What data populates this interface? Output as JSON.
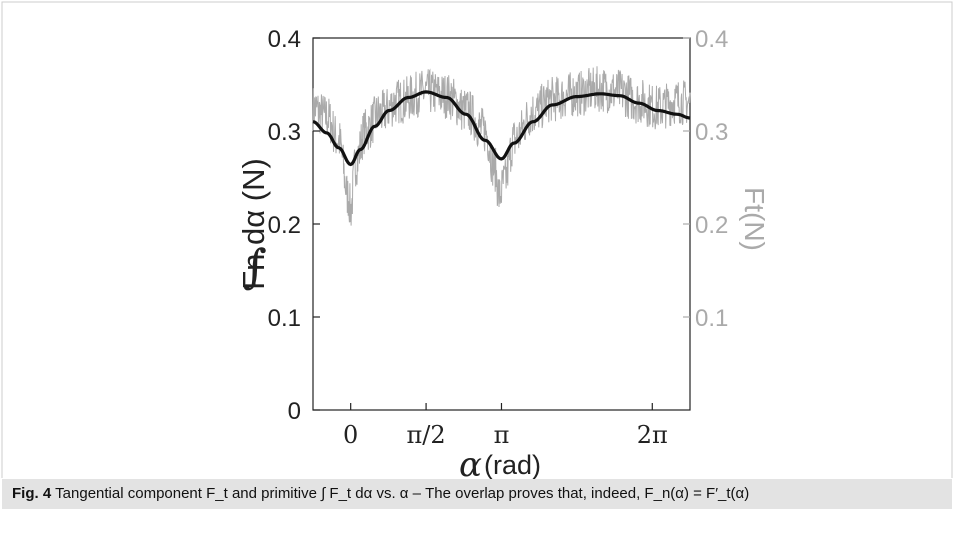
{
  "chart_data": {
    "type": "line",
    "x_axis": {
      "label_symbol": "α",
      "label_unit": "(rad)",
      "range": [
        -0.785,
        7.069
      ],
      "ticks": [
        {
          "value": 0,
          "label": "0"
        },
        {
          "value": 1.5708,
          "label": "π/2"
        },
        {
          "value": 3.1416,
          "label": "π"
        },
        {
          "value": 6.2832,
          "label": "2π"
        }
      ]
    },
    "y_axis_left": {
      "label_prefix": "∫",
      "label_main": "Fn dα (N)",
      "range": [
        0,
        0.4
      ],
      "ticks": [
        {
          "value": 0,
          "label": "0"
        },
        {
          "value": 0.1,
          "label": "0.1"
        },
        {
          "value": 0.2,
          "label": "0.2"
        },
        {
          "value": 0.3,
          "label": "0.3"
        },
        {
          "value": 0.4,
          "label": "0.4"
        }
      ]
    },
    "y_axis_right": {
      "label": "Ft(N)",
      "color": "#aaaaaa",
      "range": [
        0,
        0.4
      ],
      "ticks": [
        {
          "value": 0.1,
          "label": "0.1"
        },
        {
          "value": 0.2,
          "label": "0.2"
        },
        {
          "value": 0.3,
          "label": "0.3"
        },
        {
          "value": 0.4,
          "label": "0.4"
        }
      ]
    },
    "series": [
      {
        "color": "#111111",
        "x": [
          -0.785,
          -0.5,
          -0.25,
          0,
          0.2,
          0.5,
          0.8,
          1.2,
          1.57,
          2.0,
          2.4,
          2.8,
          3.14,
          3.4,
          3.8,
          4.2,
          4.71,
          5.2,
          5.6,
          6.0,
          6.4,
          6.8,
          7.069
        ],
        "y": [
          0.31,
          0.298,
          0.282,
          0.264,
          0.28,
          0.305,
          0.322,
          0.336,
          0.342,
          0.336,
          0.318,
          0.29,
          0.27,
          0.287,
          0.31,
          0.328,
          0.337,
          0.34,
          0.338,
          0.33,
          0.322,
          0.318,
          0.314
        ]
      },
      {
        "color": "#aaaaaa",
        "x": [
          -0.785,
          -0.5,
          -0.25,
          -0.05,
          0.0,
          0.1,
          0.3,
          0.6,
          1.0,
          1.57,
          2.0,
          2.4,
          2.8,
          3.0,
          3.1,
          3.2,
          3.4,
          3.8,
          4.2,
          4.71,
          5.2,
          5.6,
          6.0,
          6.4,
          6.8,
          7.069
        ],
        "y": [
          0.325,
          0.315,
          0.29,
          0.23,
          0.215,
          0.265,
          0.3,
          0.318,
          0.332,
          0.342,
          0.338,
          0.322,
          0.3,
          0.26,
          0.23,
          0.245,
          0.29,
          0.32,
          0.334,
          0.34,
          0.345,
          0.342,
          0.332,
          0.325,
          0.332,
          0.33
        ]
      }
    ]
  },
  "caption": {
    "label": "Fig. 4",
    "text": "Tangential component F_t and primitive ∫ F_t dα vs. α – The overlap proves that, indeed, F_n(α) = F′_t(α)"
  }
}
